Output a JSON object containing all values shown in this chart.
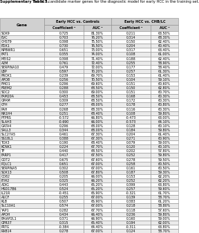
{
  "title_bold": "Supplementary Table 5.",
  "title_rest": " The 917 candidate marker genes for the diagnostic model for early HCC in the training set.",
  "col_headers": [
    "Gene",
    "Coefficient ᵃ",
    "AUC ᵃ",
    "Coefficient ᵃ",
    "AUC ᵃ"
  ],
  "group_headers": [
    "Early HCC vs. Controls",
    "Early HCC vs. CHB/LC"
  ],
  "rows": [
    [
      "SOX9",
      "0.725",
      "81.30%",
      "0.211",
      "63.50%"
    ],
    [
      "EVC",
      "0.703",
      "76.20%",
      "0.314",
      "68.30%"
    ],
    [
      "CHST9",
      "0.398",
      "75.50%",
      "0.150",
      "62.40%"
    ],
    [
      "PDX1",
      "0.730",
      "76.50%",
      "0.204",
      "60.40%"
    ],
    [
      "NPBWR1",
      "0.651",
      "73.00%",
      "0.317",
      "63.40%"
    ],
    [
      "FAT1",
      "0.355",
      "74.00%",
      "0.108",
      "61.00%"
    ],
    [
      "MEIS2",
      "0.398",
      "71.40%",
      "0.188",
      "62.40%"
    ],
    [
      "A2M",
      "0.761",
      "72.40%",
      "0.255",
      "58.90%"
    ],
    [
      "SERPINA10",
      "0.479",
      "72.00%",
      "0.177",
      "58.40%"
    ],
    [
      "LBP",
      "0.597",
      "70.20%",
      "0.257",
      "61.30%"
    ],
    [
      "PROX1",
      "0.239",
      "69.70%",
      "0.153",
      "61.40%"
    ],
    [
      "APOB",
      "0.256",
      "70.50%",
      "0.104",
      "59.10%"
    ],
    [
      "FMO1",
      "0.296",
      "69.60%",
      "0.151",
      "60.60%"
    ],
    [
      "FREM2",
      "0.288",
      "68.50%",
      "0.150",
      "62.80%"
    ],
    [
      "SDC2",
      "0.300",
      "69.00%",
      "0.151",
      "60.70%"
    ],
    [
      "FAM20A",
      "0.453",
      "68.50%",
      "0.168",
      "60.30%"
    ],
    [
      "GPAM",
      "0.309",
      "68.50%",
      "0.172",
      "60.30%"
    ],
    [
      "CFH",
      "0.277",
      "68.00%",
      "0.178",
      "60.80%"
    ],
    [
      "PAH",
      "0.268",
      "68.30%",
      "0.116",
      "60.30%"
    ],
    [
      "NR1H4",
      "0.251",
      "68.40%",
      "0.108",
      "59.80%"
    ],
    [
      "PTPRS",
      "-0.572",
      "66.80%",
      "-0.473",
      "63.00%"
    ],
    [
      "SLAH3",
      "-0.690",
      "66.00%",
      "-0.573",
      "64.10%"
    ],
    [
      "GATA4",
      "0.296",
      "68.00%",
      "0.128",
      "60.10%"
    ],
    [
      "SALL3",
      "0.344",
      "68.00%",
      "0.184",
      "59.80%"
    ],
    [
      "SLC27A5",
      "0.461",
      "67.30%",
      "0.204",
      "61.40%"
    ],
    [
      "SS18L1",
      "0.388",
      "67.30%",
      "0.271",
      "60.90%"
    ],
    [
      "TOX3",
      "0.190",
      "68.40%",
      "0.079",
      "59.00%"
    ],
    [
      "KCNK1",
      "0.224",
      "67.70%",
      "0.120",
      "60.10%"
    ],
    [
      "TF",
      "0.440",
      "68.50%",
      "0.202",
      "57.80%"
    ],
    [
      "FARP1",
      "0.417",
      "67.50%",
      "0.252",
      "59.80%"
    ],
    [
      "GOT2",
      "0.675",
      "67.60%",
      "0.278",
      "59.50%"
    ],
    [
      "PQLC1",
      "0.651",
      "67.00%",
      "0.258",
      "60.50%"
    ],
    [
      "SERPINA5",
      "0.302",
      "67.00%",
      "0.161",
      "60.50%"
    ],
    [
      "SOX13",
      "0.508",
      "67.80%",
      "0.187",
      "59.30%"
    ],
    [
      "CD82",
      "0.205",
      "66.00%",
      "0.153",
      "62.20%"
    ],
    [
      "ITIH2",
      "0.325",
      "66.20%",
      "0.252",
      "62.20%"
    ],
    [
      "ADIG",
      "0.443",
      "65.20%",
      "0.399",
      "63.80%"
    ],
    [
      "HSD17B6",
      "0.524",
      "65.20%",
      "0.257",
      "59.60%"
    ],
    [
      "IL21R",
      "-0.451",
      "65.90%",
      "-0.321",
      "61.70%"
    ],
    [
      "A1CF",
      "0.255",
      "67.00%",
      "0.139",
      "58.70%"
    ],
    [
      "KLB",
      "0.507",
      "65.90%",
      "0.383",
      "61.20%"
    ],
    [
      "SLC10A1",
      "0.574",
      "67.00%",
      "0.218",
      "58.80%"
    ],
    [
      "YAP1",
      "0.282",
      "67.70%",
      "0.118",
      "57.60%"
    ],
    [
      "APOH",
      "0.434",
      "66.40%",
      "0.236",
      "59.80%"
    ],
    [
      "BAIAP2L1",
      "0.371",
      "66.90%",
      "0.160",
      "59.00%"
    ],
    [
      "GPR37",
      "0.315",
      "65.40%",
      "0.194",
      "62.00%"
    ],
    [
      "PRTG",
      "-0.384",
      "64.40%",
      "-0.311",
      "63.80%"
    ],
    [
      "RAB14",
      "0.278",
      "67.00%",
      "0.124",
      "58.70%"
    ]
  ],
  "header_bg": "#d0d0d0",
  "alt_row_bg": "#ebebeb",
  "white_bg": "#ffffff",
  "border_color": "#888888",
  "text_color": "#000000"
}
